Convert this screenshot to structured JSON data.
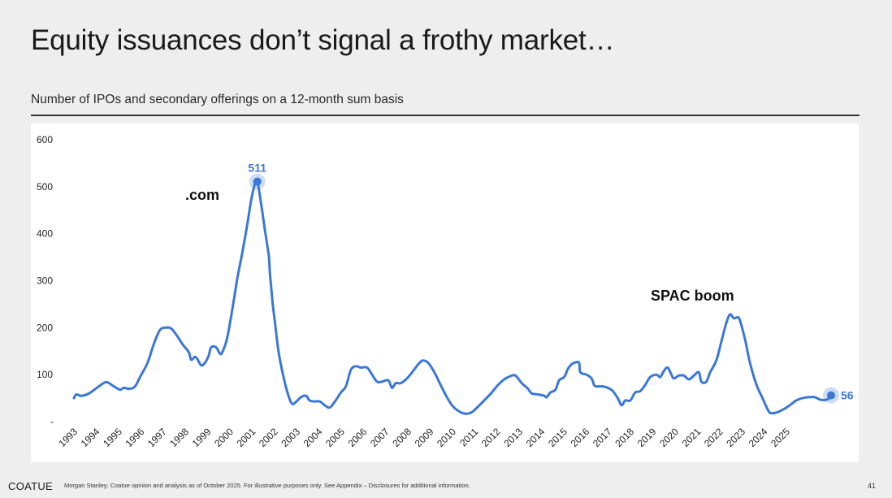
{
  "header": {
    "title": "Equity issuances don’t signal a frothy market…",
    "subtitle": "Number of IPOs and secondary offerings on a 12-month sum basis"
  },
  "footer": {
    "brand": "COATUE",
    "note": "Morgan Stanley; Coatue opinion and analysis as of October 2025. For illustrative purposes only.  See Appendix – Disclosures for additional information.",
    "page": "41"
  },
  "chart_data": {
    "type": "line",
    "title": "",
    "xlabel": "",
    "ylabel": "",
    "ylim": [
      0,
      600
    ],
    "xlim": [
      1993,
      2025.95
    ],
    "yticks": [
      "600",
      "500",
      "400",
      "300",
      "200",
      "100",
      "-"
    ],
    "xticks": [
      "1993",
      "1994",
      "1995",
      "1996",
      "1997",
      "1998",
      "1999",
      "2000",
      "2001",
      "2002",
      "2003",
      "2004",
      "2005",
      "2006",
      "2007",
      "2008",
      "2009",
      "2010",
      "2011",
      "2012",
      "2013",
      "2014",
      "2015",
      "2016",
      "2017",
      "2018",
      "2019",
      "2020",
      "2021",
      "2022",
      "2023",
      "2024",
      "2025"
    ],
    "series": [
      {
        "color": "#3a77d6",
        "points": [
          [
            1993.0,
            50
          ],
          [
            1993.1,
            58
          ],
          [
            1993.3,
            55
          ],
          [
            1993.6,
            60
          ],
          [
            1994.0,
            75
          ],
          [
            1994.3,
            84
          ],
          [
            1994.6,
            75
          ],
          [
            1994.85,
            68
          ],
          [
            1995.0,
            72
          ],
          [
            1995.2,
            70
          ],
          [
            1995.45,
            75
          ],
          [
            1995.7,
            100
          ],
          [
            1995.95,
            125
          ],
          [
            1996.2,
            165
          ],
          [
            1996.45,
            195
          ],
          [
            1996.7,
            200
          ],
          [
            1996.9,
            198
          ],
          [
            1997.1,
            185
          ],
          [
            1997.35,
            165
          ],
          [
            1997.6,
            148
          ],
          [
            1997.7,
            132
          ],
          [
            1997.85,
            138
          ],
          [
            1997.95,
            133
          ],
          [
            1998.1,
            120
          ],
          [
            1998.25,
            125
          ],
          [
            1998.4,
            140
          ],
          [
            1998.5,
            158
          ],
          [
            1998.7,
            158
          ],
          [
            1998.85,
            145
          ],
          [
            1998.95,
            148
          ],
          [
            1999.15,
            180
          ],
          [
            1999.4,
            255
          ],
          [
            1999.55,
            305
          ],
          [
            1999.75,
            360
          ],
          [
            1999.95,
            420
          ],
          [
            2000.1,
            470
          ],
          [
            2000.25,
            505
          ],
          [
            2000.35,
            511
          ],
          [
            2000.5,
            465
          ],
          [
            2000.65,
            410
          ],
          [
            2000.75,
            375
          ],
          [
            2000.82,
            350
          ],
          [
            2000.85,
            320
          ],
          [
            2000.9,
            290
          ],
          [
            2000.97,
            250
          ],
          [
            2001.05,
            215
          ],
          [
            2001.2,
            150
          ],
          [
            2001.4,
            95
          ],
          [
            2001.6,
            55
          ],
          [
            2001.75,
            38
          ],
          [
            2001.9,
            42
          ],
          [
            2002.1,
            52
          ],
          [
            2002.3,
            55
          ],
          [
            2002.45,
            45
          ],
          [
            2002.65,
            43
          ],
          [
            2002.85,
            43
          ],
          [
            2003.05,
            35
          ],
          [
            2003.25,
            30
          ],
          [
            2003.45,
            42
          ],
          [
            2003.7,
            62
          ],
          [
            2003.9,
            75
          ],
          [
            2004.1,
            110
          ],
          [
            2004.3,
            118
          ],
          [
            2004.5,
            115
          ],
          [
            2004.75,
            115
          ],
          [
            2004.95,
            100
          ],
          [
            2005.15,
            85
          ],
          [
            2005.35,
            85
          ],
          [
            2005.6,
            88
          ],
          [
            2005.75,
            72
          ],
          [
            2005.9,
            82
          ],
          [
            2006.1,
            82
          ],
          [
            2006.35,
            92
          ],
          [
            2006.6,
            108
          ],
          [
            2006.85,
            125
          ],
          [
            2007.0,
            130
          ],
          [
            2007.2,
            125
          ],
          [
            2007.45,
            105
          ],
          [
            2007.7,
            78
          ],
          [
            2007.95,
            52
          ],
          [
            2008.2,
            32
          ],
          [
            2008.5,
            20
          ],
          [
            2008.75,
            17
          ],
          [
            2008.95,
            20
          ],
          [
            2009.2,
            32
          ],
          [
            2009.5,
            48
          ],
          [
            2009.75,
            62
          ],
          [
            2010.0,
            78
          ],
          [
            2010.25,
            90
          ],
          [
            2010.5,
            97
          ],
          [
            2010.7,
            98
          ],
          [
            2010.95,
            82
          ],
          [
            2011.2,
            70
          ],
          [
            2011.35,
            60
          ],
          [
            2011.6,
            58
          ],
          [
            2011.85,
            55
          ],
          [
            2011.95,
            52
          ],
          [
            2012.1,
            62
          ],
          [
            2012.3,
            68
          ],
          [
            2012.45,
            88
          ],
          [
            2012.65,
            95
          ],
          [
            2012.8,
            112
          ],
          [
            2012.95,
            122
          ],
          [
            2013.1,
            126
          ],
          [
            2013.25,
            125
          ],
          [
            2013.3,
            105
          ],
          [
            2013.55,
            100
          ],
          [
            2013.75,
            92
          ],
          [
            2013.85,
            78
          ],
          [
            2013.95,
            75
          ],
          [
            2014.2,
            75
          ],
          [
            2014.4,
            72
          ],
          [
            2014.6,
            65
          ],
          [
            2014.8,
            50
          ],
          [
            2014.95,
            35
          ],
          [
            2015.1,
            45
          ],
          [
            2015.3,
            45
          ],
          [
            2015.5,
            62
          ],
          [
            2015.7,
            65
          ],
          [
            2015.9,
            78
          ],
          [
            2016.1,
            95
          ],
          [
            2016.35,
            100
          ],
          [
            2016.5,
            95
          ],
          [
            2016.65,
            108
          ],
          [
            2016.8,
            115
          ],
          [
            2016.95,
            100
          ],
          [
            2017.05,
            92
          ],
          [
            2017.25,
            98
          ],
          [
            2017.45,
            98
          ],
          [
            2017.65,
            90
          ],
          [
            2017.85,
            98
          ],
          [
            2018.05,
            105
          ],
          [
            2018.15,
            85
          ],
          [
            2018.35,
            85
          ],
          [
            2018.5,
            105
          ],
          [
            2018.75,
            130
          ],
          [
            2018.95,
            170
          ],
          [
            2019.15,
            210
          ],
          [
            2019.3,
            228
          ],
          [
            2019.45,
            220
          ],
          [
            2019.6,
            222
          ],
          [
            2019.7,
            215
          ],
          [
            2019.9,
            175
          ],
          [
            2020.1,
            125
          ],
          [
            2020.35,
            80
          ],
          [
            2020.6,
            50
          ],
          [
            2020.85,
            22
          ],
          [
            2021.0,
            18
          ],
          [
            2021.2,
            20
          ],
          [
            2021.5,
            28
          ],
          [
            2021.75,
            37
          ],
          [
            2021.95,
            45
          ],
          [
            2022.2,
            50
          ],
          [
            2022.45,
            52
          ],
          [
            2022.7,
            52
          ],
          [
            2022.9,
            47
          ],
          [
            2023.1,
            46
          ],
          [
            2023.25,
            49
          ],
          [
            2023.35,
            56
          ]
        ]
      }
    ],
    "annotations": [
      {
        "text": "511",
        "x": 2000.35,
        "y": 511,
        "color": "#3a77d6"
      },
      {
        "text": ".com",
        "color": "#111111"
      },
      {
        "text": "SPAC boom",
        "color": "#111111"
      },
      {
        "text": "56",
        "x": 2025.95,
        "y": 56,
        "color": "#3a77d6"
      }
    ],
    "grid": false,
    "legend": "none"
  }
}
